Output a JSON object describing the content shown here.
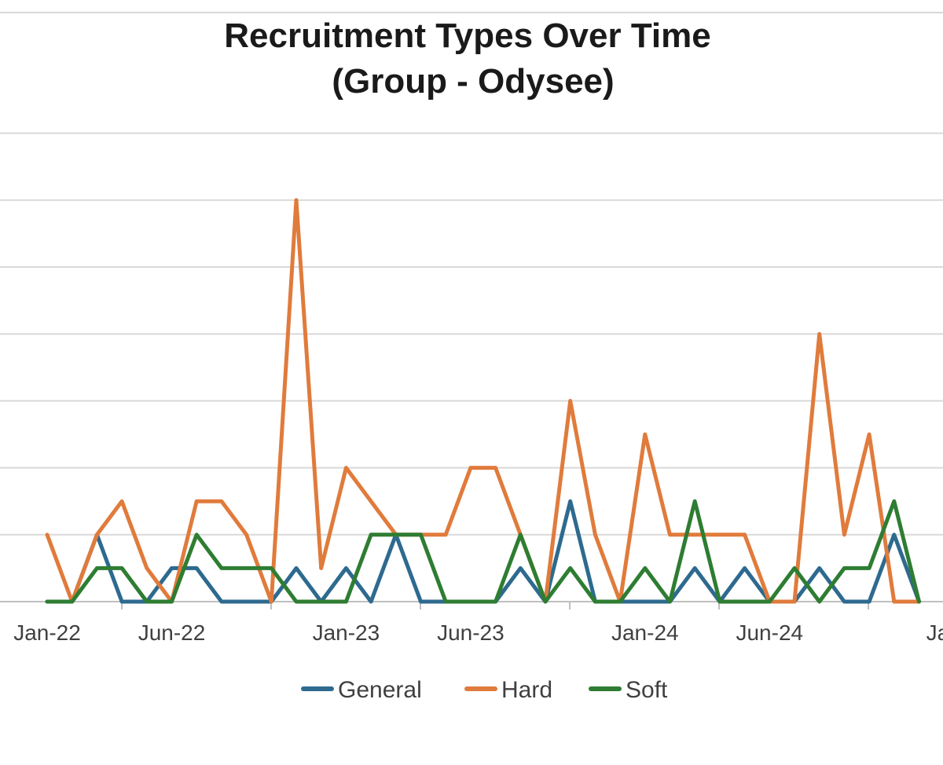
{
  "chart_data": {
    "type": "line",
    "title": "Recruitment Types Over Time",
    "subtitle": "(Group - Odysee)",
    "xlabel": "",
    "ylabel": "",
    "x": [
      "Jan-22",
      "Feb-22",
      "Mar-22",
      "Apr-22",
      "May-22",
      "Jun-22",
      "Jul-22",
      "Aug-22",
      "Sep-22",
      "Oct-22",
      "Nov-22",
      "Dec-22",
      "Jan-23",
      "Feb-23",
      "Mar-23",
      "Apr-23",
      "May-23",
      "Jun-23",
      "Jul-23",
      "Aug-23",
      "Sep-23",
      "Oct-23",
      "Nov-23",
      "Dec-23",
      "Jan-24",
      "Feb-24",
      "Mar-24",
      "Apr-24",
      "May-24",
      "Jun-24",
      "Jul-24",
      "Aug-24",
      "Sep-24",
      "Oct-24",
      "Nov-24",
      "Dec-24"
    ],
    "x_tick_labels": [
      "Jan-22",
      "Jun-22",
      "Jan-23",
      "Jun-23",
      "Jan-24",
      "Jun-24",
      "Jan"
    ],
    "ylim": [
      0,
      14
    ],
    "grid": true,
    "legend": "bottom",
    "series": [
      {
        "name": "General",
        "color": "#2e6a8f",
        "x_start": 0,
        "values": [
          0,
          0,
          2,
          0,
          0,
          1,
          1,
          0,
          0,
          0,
          1,
          0,
          1,
          0,
          2,
          0,
          0,
          0,
          0,
          1,
          0,
          3,
          0,
          0,
          0,
          0,
          1,
          0,
          1,
          0,
          0,
          1,
          0,
          0,
          2,
          0
        ]
      },
      {
        "name": "Hard",
        "color": "#e07b3c",
        "x_start": 0,
        "values": [
          2,
          0,
          2,
          3,
          1,
          0,
          3,
          3,
          2,
          0,
          12,
          1,
          4,
          3,
          2,
          2,
          2,
          4,
          4,
          2,
          0,
          6,
          2,
          0,
          5,
          2,
          2,
          2,
          2,
          0,
          0,
          8,
          2,
          5,
          0,
          0
        ]
      },
      {
        "name": "Soft",
        "color": "#2e7d32",
        "x_start": 0,
        "values": [
          0,
          0,
          1,
          1,
          0,
          0,
          2,
          1,
          1,
          1,
          0,
          0,
          0,
          2,
          2,
          2,
          0,
          0,
          0,
          2,
          0,
          1,
          0,
          0,
          1,
          0,
          3,
          0,
          0,
          0,
          1,
          0,
          1,
          1,
          3,
          0
        ]
      }
    ]
  }
}
